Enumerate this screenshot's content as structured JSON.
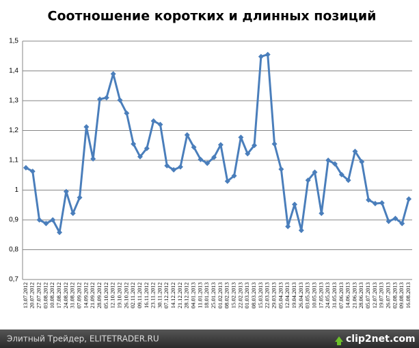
{
  "chart_data": {
    "type": "line",
    "title": "Соотношение коротких и длинных позиций",
    "categories": [
      "13.07.2012",
      "20.07.2012",
      "27.07.2012",
      "03.08.2012",
      "10.08.2012",
      "17.08.2012",
      "24.08.2012",
      "31.08.2012",
      "07.09.2012",
      "14.09.2012",
      "21.09.2012",
      "28.09.2012",
      "05.10.2012",
      "12.10.2012",
      "19.10.2012",
      "26.10.2012",
      "02.11.2012",
      "09.11.2012",
      "16.11.2012",
      "23.11.2012",
      "30.11.2012",
      "07.12.2012",
      "14.12.2012",
      "21.12.2012",
      "28.12.2012",
      "04.01.2013",
      "11.01.2013",
      "18.01.2013",
      "25.01.2013",
      "01.02.2013",
      "08.02.2013",
      "15.02.2013",
      "22.02.2013",
      "01.03.2013",
      "08.03.2013",
      "15.03.2013",
      "22.03.2013",
      "29.03.2013",
      "05.04.2013",
      "12.04.2013",
      "19.04.2013",
      "26.04.2013",
      "03.05.2013",
      "10.05.2013",
      "17.05.2013",
      "24.05.2013",
      "31.05.2013",
      "07.06.2013",
      "14.06.2013",
      "21.06.2013",
      "28.06.2013",
      "05.07.2013",
      "12.07.2013",
      "19.07.2013",
      "26.07.2013",
      "02.08.2013",
      "09.08.2013",
      "16.08.2013"
    ],
    "values": [
      1.075,
      1.063,
      0.9,
      0.888,
      0.9,
      0.858,
      0.995,
      0.922,
      0.975,
      1.212,
      1.105,
      1.305,
      1.31,
      1.39,
      1.302,
      1.258,
      1.155,
      1.112,
      1.14,
      1.232,
      1.22,
      1.082,
      1.068,
      1.078,
      1.185,
      1.144,
      1.103,
      1.09,
      1.11,
      1.152,
      1.03,
      1.048,
      1.177,
      1.122,
      1.15,
      1.448,
      1.455,
      1.155,
      1.07,
      0.878,
      0.952,
      0.865,
      1.033,
      1.06,
      0.922,
      1.1,
      1.088,
      1.052,
      1.033,
      1.13,
      1.095,
      0.967,
      0.955,
      0.957,
      0.895,
      0.905,
      0.888,
      0.97
    ],
    "color": "#4a7ebb",
    "ylim": [
      0.7,
      1.5
    ],
    "yticks": [
      {
        "value": 0.7,
        "label": "0,7"
      },
      {
        "value": 0.8,
        "label": "0,8"
      },
      {
        "value": 0.9,
        "label": "0,9"
      },
      1,
      {
        "value": 1.1,
        "label": "1,1"
      },
      {
        "value": 1.2,
        "label": "1,2"
      },
      {
        "value": 1.3,
        "label": "1,3"
      },
      {
        "value": 1.4,
        "label": "1,4"
      },
      {
        "value": 1.5,
        "label": "1,5"
      }
    ],
    "grid": true
  },
  "footer": {
    "source": "Элитный Трейдер, ELITETRADER.RU",
    "watermark": "clip2net.com"
  }
}
